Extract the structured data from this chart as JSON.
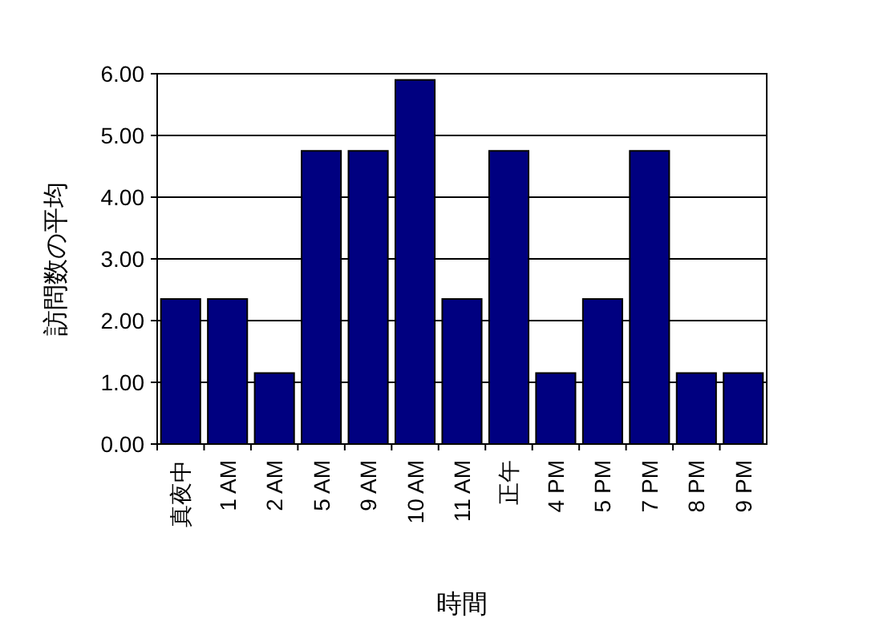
{
  "chart_data": {
    "type": "bar",
    "xlabel": "時間",
    "ylabel": "訪問数の平均",
    "categories": [
      "真夜中",
      "1 AM",
      "2 AM",
      "5 AM",
      "9 AM",
      "10 AM",
      "11 AM",
      "正午",
      "4 PM",
      "5 PM",
      "7 PM",
      "8 PM",
      "9 PM"
    ],
    "values": [
      2.35,
      2.35,
      1.15,
      4.75,
      4.75,
      5.9,
      2.35,
      4.75,
      1.15,
      2.35,
      4.75,
      1.15,
      1.15
    ],
    "color": "#000080",
    "ylim": [
      0,
      6
    ],
    "yticks": [
      {
        "value": 0,
        "label": "0.00"
      },
      {
        "value": 1,
        "label": "1.00"
      },
      {
        "value": 2,
        "label": "2.00"
      },
      {
        "value": 3,
        "label": "3.00"
      },
      {
        "value": 4,
        "label": "4.00"
      },
      {
        "value": 5,
        "label": "5.00"
      },
      {
        "value": 6,
        "label": "6.00"
      }
    ],
    "grid": "y"
  }
}
